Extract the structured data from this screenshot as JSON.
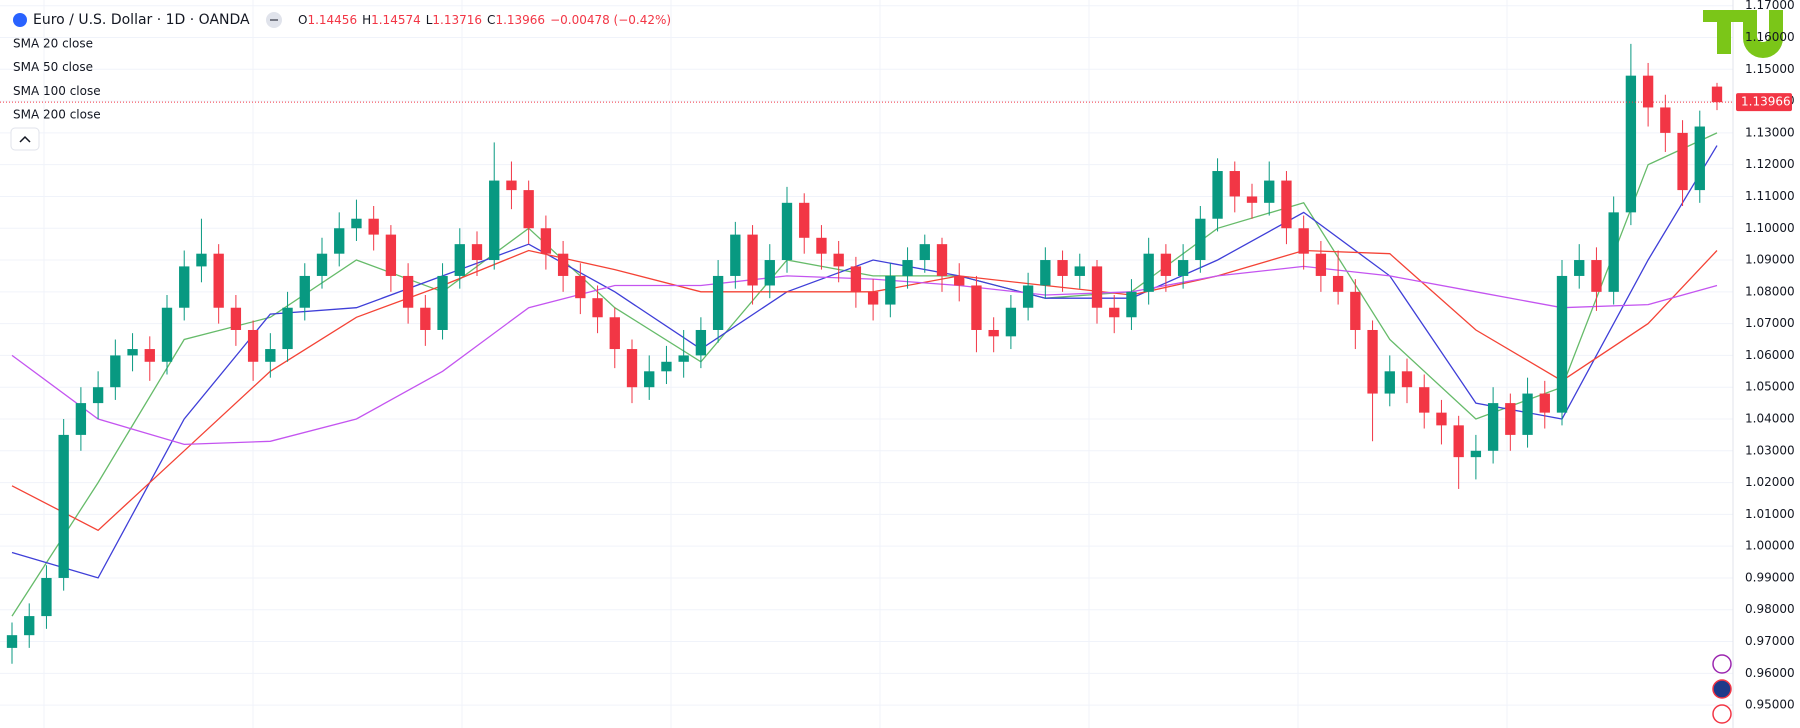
{
  "header": {
    "title": "Euro / U.S. Dollar · 1D · OANDA",
    "o": "O",
    "h": "H",
    "l": "L",
    "c": "C",
    "change": "−0.00478 (−0.42%)"
  },
  "chart_data": {
    "type": "candlestick",
    "up_color": "#089981",
    "down_color": "#f23645",
    "ylim": [
      0.9428,
      1.1718
    ],
    "yticks": [
      {
        "value": 0.95,
        "label": "0.95000"
      },
      {
        "value": 0.96,
        "label": "0.96000"
      },
      {
        "value": 0.97,
        "label": "0.97000"
      },
      {
        "value": 0.98,
        "label": "0.98000"
      },
      {
        "value": 0.99,
        "label": "0.99000"
      },
      {
        "value": 1.0,
        "label": "1.00000"
      },
      {
        "value": 1.01,
        "label": "1.01000"
      },
      {
        "value": 1.02,
        "label": "1.02000"
      },
      {
        "value": 1.03,
        "label": "1.03000"
      },
      {
        "value": 1.04,
        "label": "1.04000"
      },
      {
        "value": 1.05,
        "label": "1.05000"
      },
      {
        "value": 1.06,
        "label": "1.06000"
      },
      {
        "value": 1.07,
        "label": "1.07000"
      },
      {
        "value": 1.08,
        "label": "1.08000"
      },
      {
        "value": 1.09,
        "label": "1.09000"
      },
      {
        "value": 1.1,
        "label": "1.10000"
      },
      {
        "value": 1.11,
        "label": "1.11000"
      },
      {
        "value": 1.12,
        "label": "1.12000"
      },
      {
        "value": 1.13,
        "label": "1.13000"
      },
      {
        "value": 1.14,
        "label": "1.14000"
      },
      {
        "value": 1.15,
        "label": "1.15000"
      },
      {
        "value": 1.16,
        "label": "1.16000"
      },
      {
        "value": 1.17,
        "label": "1.17000"
      }
    ],
    "grid": true,
    "candles": {
      "open": [
        0.968,
        0.972,
        0.978,
        0.99,
        1.035,
        1.045,
        1.05,
        1.06,
        1.062,
        1.058,
        1.075,
        1.088,
        1.092,
        1.075,
        1.068,
        1.058,
        1.062,
        1.075,
        1.085,
        1.092,
        1.1,
        1.103,
        1.098,
        1.085,
        1.075,
        1.068,
        1.085,
        1.095,
        1.09,
        1.115,
        1.112,
        1.1,
        1.092,
        1.085,
        1.078,
        1.072,
        1.062,
        1.05,
        1.055,
        1.058,
        1.06,
        1.068,
        1.085,
        1.098,
        1.082,
        1.09,
        1.108,
        1.097,
        1.092,
        1.088,
        1.08,
        1.076,
        1.085,
        1.09,
        1.095,
        1.085,
        1.082,
        1.068,
        1.066,
        1.075,
        1.082,
        1.09,
        1.085,
        1.088,
        1.075,
        1.072,
        1.08,
        1.092,
        1.085,
        1.09,
        1.103,
        1.118,
        1.11,
        1.108,
        1.115,
        1.1,
        1.092,
        1.085,
        1.08,
        1.068,
        1.048,
        1.055,
        1.05,
        1.042,
        1.038,
        1.028,
        1.03,
        1.045,
        1.035,
        1.048,
        1.042,
        1.085,
        1.09,
        1.08,
        1.105,
        1.148,
        1.138,
        1.13,
        1.112,
        1.14456
      ],
      "high": [
        0.976,
        0.982,
        0.994,
        1.04,
        1.05,
        1.055,
        1.065,
        1.067,
        1.066,
        1.079,
        1.093,
        1.103,
        1.095,
        1.079,
        1.071,
        1.067,
        1.08,
        1.089,
        1.097,
        1.105,
        1.109,
        1.107,
        1.101,
        1.089,
        1.079,
        1.089,
        1.1,
        1.099,
        1.127,
        1.121,
        1.115,
        1.104,
        1.096,
        1.089,
        1.082,
        1.075,
        1.065,
        1.06,
        1.063,
        1.068,
        1.072,
        1.09,
        1.102,
        1.101,
        1.095,
        1.113,
        1.111,
        1.101,
        1.096,
        1.091,
        1.084,
        1.089,
        1.094,
        1.098,
        1.097,
        1.089,
        1.085,
        1.072,
        1.079,
        1.086,
        1.094,
        1.093,
        1.092,
        1.09,
        1.079,
        1.084,
        1.097,
        1.095,
        1.095,
        1.107,
        1.122,
        1.121,
        1.114,
        1.121,
        1.118,
        1.104,
        1.096,
        1.093,
        1.084,
        1.071,
        1.06,
        1.059,
        1.054,
        1.046,
        1.041,
        1.035,
        1.05,
        1.048,
        1.053,
        1.052,
        1.09,
        1.095,
        1.094,
        1.11,
        1.158,
        1.152,
        1.142,
        1.134,
        1.137,
        1.14574
      ],
      "low": [
        0.963,
        0.968,
        0.974,
        0.986,
        1.03,
        1.04,
        1.046,
        1.055,
        1.052,
        1.054,
        1.071,
        1.083,
        1.07,
        1.063,
        1.052,
        1.053,
        1.058,
        1.071,
        1.081,
        1.088,
        1.096,
        1.093,
        1.08,
        1.07,
        1.063,
        1.065,
        1.081,
        1.085,
        1.087,
        1.106,
        1.095,
        1.087,
        1.08,
        1.073,
        1.067,
        1.056,
        1.045,
        1.046,
        1.051,
        1.053,
        1.056,
        1.064,
        1.081,
        1.076,
        1.078,
        1.086,
        1.092,
        1.087,
        1.083,
        1.075,
        1.071,
        1.072,
        1.081,
        1.086,
        1.08,
        1.077,
        1.061,
        1.061,
        1.062,
        1.071,
        1.078,
        1.08,
        1.081,
        1.07,
        1.067,
        1.068,
        1.076,
        1.08,
        1.081,
        1.086,
        1.099,
        1.105,
        1.103,
        1.104,
        1.095,
        1.087,
        1.08,
        1.076,
        1.062,
        1.033,
        1.044,
        1.045,
        1.037,
        1.032,
        1.018,
        1.021,
        1.026,
        1.03,
        1.031,
        1.037,
        1.038,
        1.081,
        1.074,
        1.076,
        1.101,
        1.132,
        1.124,
        1.107,
        1.108,
        1.13716
      ],
      "close": [
        0.972,
        0.978,
        0.99,
        1.035,
        1.045,
        1.05,
        1.06,
        1.062,
        1.058,
        1.075,
        1.088,
        1.092,
        1.075,
        1.068,
        1.058,
        1.062,
        1.075,
        1.085,
        1.092,
        1.1,
        1.103,
        1.098,
        1.085,
        1.075,
        1.068,
        1.085,
        1.095,
        1.09,
        1.115,
        1.112,
        1.1,
        1.092,
        1.085,
        1.078,
        1.072,
        1.062,
        1.05,
        1.055,
        1.058,
        1.06,
        1.068,
        1.085,
        1.098,
        1.082,
        1.09,
        1.108,
        1.097,
        1.092,
        1.088,
        1.08,
        1.076,
        1.085,
        1.09,
        1.095,
        1.085,
        1.082,
        1.068,
        1.066,
        1.075,
        1.082,
        1.09,
        1.085,
        1.088,
        1.075,
        1.072,
        1.08,
        1.092,
        1.085,
        1.09,
        1.103,
        1.118,
        1.11,
        1.108,
        1.115,
        1.1,
        1.092,
        1.085,
        1.08,
        1.068,
        1.048,
        1.055,
        1.05,
        1.042,
        1.038,
        1.028,
        1.03,
        1.045,
        1.035,
        1.048,
        1.042,
        1.085,
        1.09,
        1.08,
        1.105,
        1.148,
        1.138,
        1.13,
        1.112,
        1.132,
        1.13966
      ]
    },
    "sma": {
      "x": [
        0,
        5,
        10,
        15,
        20,
        25,
        30,
        35,
        40,
        45,
        50,
        55,
        60,
        65,
        70,
        75,
        80,
        85,
        90,
        95,
        99
      ],
      "series": [
        {
          "name": "SMA 20 close",
          "color": "#66bb6a",
          "values": [
            0.978,
            1.02,
            1.065,
            1.072,
            1.09,
            1.08,
            1.1,
            1.075,
            1.058,
            1.09,
            1.085,
            1.085,
            1.078,
            1.08,
            1.1,
            1.108,
            1.065,
            1.04,
            1.05,
            1.12,
            1.13
          ]
        },
        {
          "name": "SMA 50 close",
          "color": "#3f3fd8",
          "values": [
            0.998,
            0.99,
            1.04,
            1.073,
            1.075,
            1.085,
            1.095,
            1.08,
            1.062,
            1.08,
            1.09,
            1.085,
            1.078,
            1.078,
            1.09,
            1.105,
            1.085,
            1.045,
            1.04,
            1.09,
            1.126
          ]
        },
        {
          "name": "SMA 100 close",
          "color": "#f44336",
          "values": [
            1.019,
            1.005,
            1.03,
            1.055,
            1.072,
            1.082,
            1.093,
            1.087,
            1.08,
            1.08,
            1.08,
            1.085,
            1.082,
            1.079,
            1.085,
            1.093,
            1.092,
            1.068,
            1.052,
            1.07,
            1.093
          ]
        },
        {
          "name": "SMA 200 close",
          "color": "#c455f0",
          "values": [
            1.06,
            1.04,
            1.032,
            1.033,
            1.04,
            1.055,
            1.075,
            1.082,
            1.082,
            1.085,
            1.084,
            1.082,
            1.079,
            1.08,
            1.085,
            1.088,
            1.085,
            1.08,
            1.075,
            1.076,
            1.082
          ]
        }
      ]
    }
  }
}
